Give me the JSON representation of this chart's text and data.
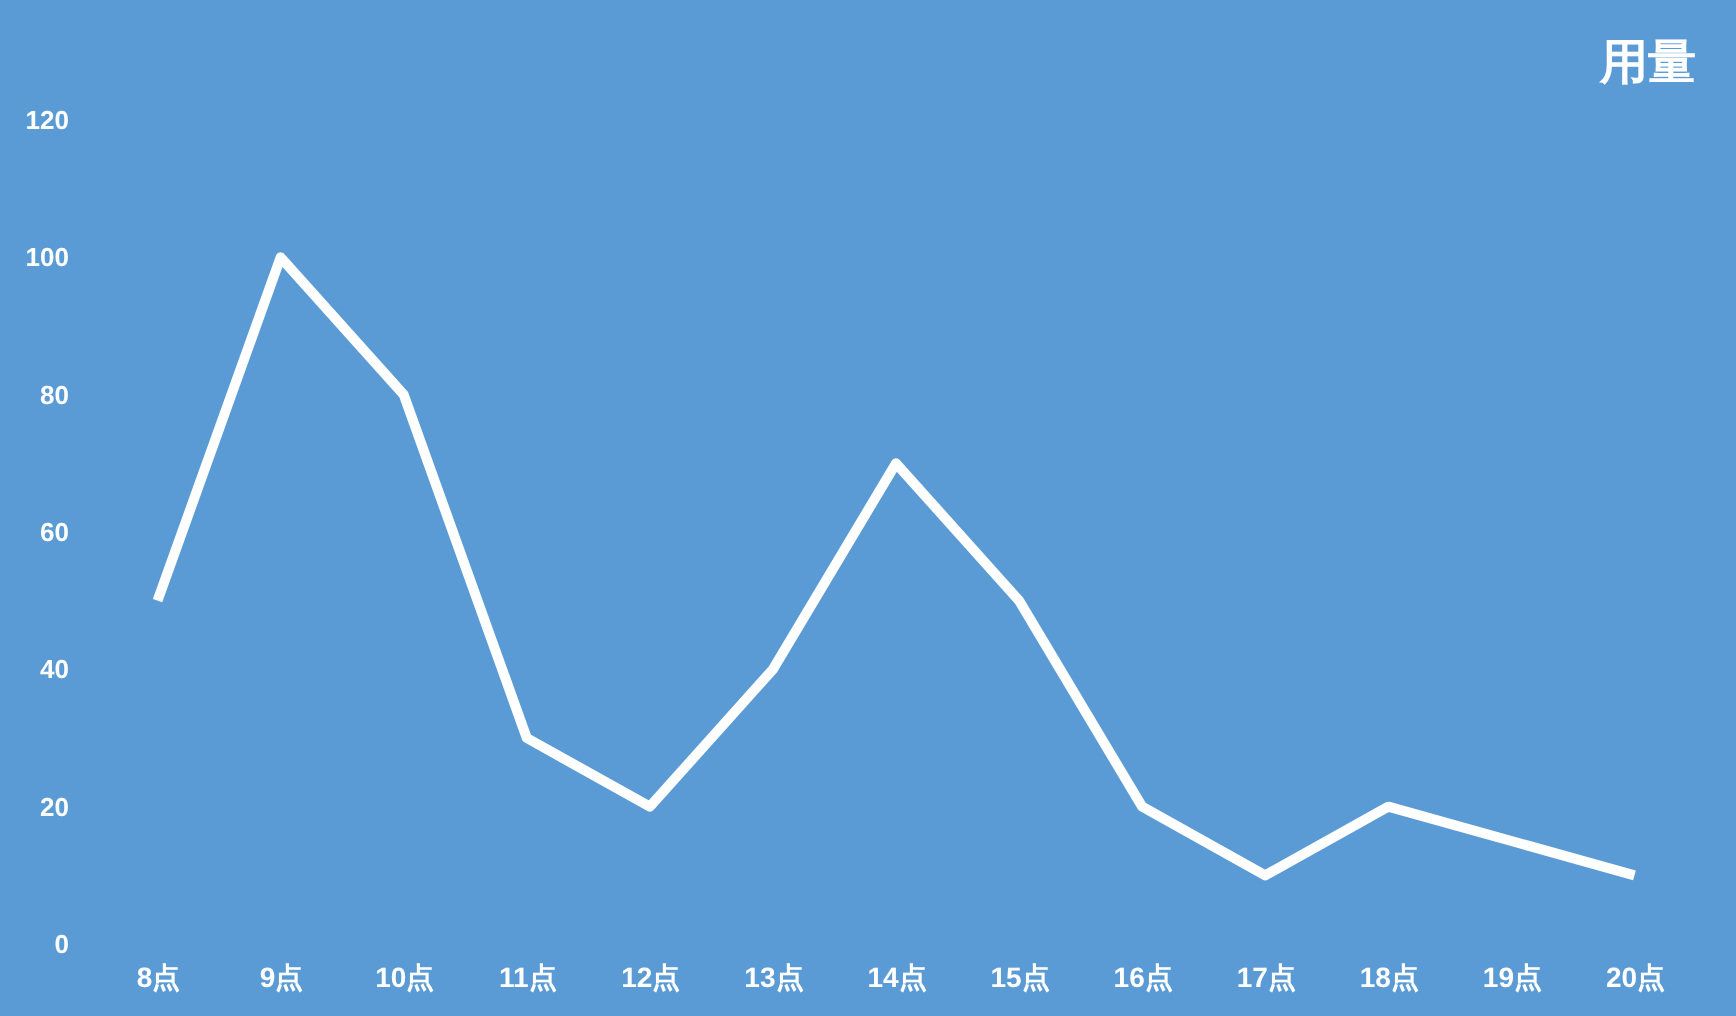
{
  "chart_data": {
    "type": "line",
    "title": "用量",
    "categories": [
      "8点",
      "9点",
      "10点",
      "11点",
      "12点",
      "13点",
      "14点",
      "15点",
      "16点",
      "17点",
      "18点",
      "19点",
      "20点"
    ],
    "values": [
      50,
      100,
      80,
      30,
      20,
      40,
      70,
      50,
      20,
      10,
      20,
      15,
      10
    ],
    "color": "#ffffff",
    "ylim": [
      0,
      120
    ],
    "yticks": [
      0,
      20,
      40,
      60,
      80,
      100,
      120
    ],
    "marker": "none",
    "line_style": "solid"
  }
}
